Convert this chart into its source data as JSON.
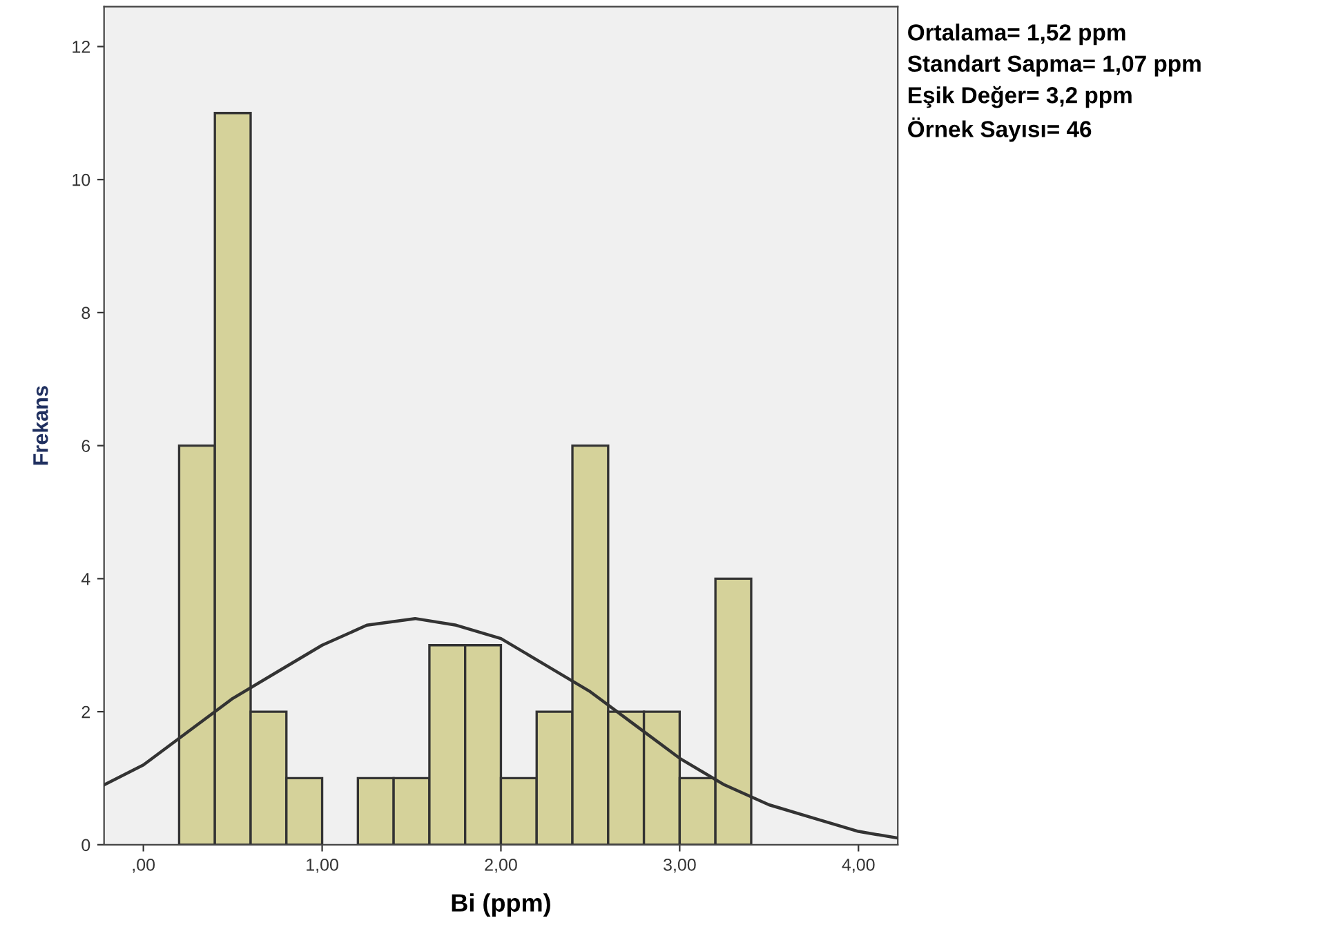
{
  "chart_data": {
    "type": "histogram",
    "xlabel": "Bi (ppm)",
    "ylabel": "Frekans",
    "bins": [
      0.2,
      0.4,
      0.6,
      0.8,
      1.0,
      1.2,
      1.4,
      1.6,
      1.8,
      2.0,
      2.2,
      2.4,
      2.6,
      2.8,
      3.0,
      3.2,
      3.4
    ],
    "values": [
      6,
      11,
      2,
      1,
      0,
      1,
      1,
      3,
      3,
      1,
      2,
      6,
      2,
      2,
      1,
      4
    ],
    "color": "#d5d29a",
    "series": [
      {
        "type": "line",
        "color": "#333333",
        "x": [
          -0.22,
          0.0,
          0.25,
          0.5,
          0.75,
          1.0,
          1.25,
          1.52,
          1.75,
          2.0,
          2.25,
          2.5,
          2.75,
          3.0,
          3.25,
          3.5,
          3.75,
          4.0,
          4.22
        ],
        "values": [
          0.9,
          1.2,
          1.7,
          2.2,
          2.6,
          3.0,
          3.3,
          3.4,
          3.3,
          3.1,
          2.7,
          2.3,
          1.8,
          1.3,
          0.9,
          0.6,
          0.4,
          0.2,
          0.1
        ]
      }
    ],
    "xlim": [
      -0.22,
      4.22
    ],
    "ylim": [
      0,
      12.6
    ],
    "xticks": [
      {
        "value": 0,
        "label": ",00"
      },
      {
        "value": 1,
        "label": "1,00"
      },
      {
        "value": 2,
        "label": "2,00"
      },
      {
        "value": 3,
        "label": "3,00"
      },
      {
        "value": 4,
        "label": "4,00"
      }
    ],
    "yticks": [
      0,
      2,
      4,
      6,
      8,
      10,
      12
    ],
    "grid": false,
    "annotations": [
      "Ortalama= 1,52 ppm",
      "Standart Sapma= 1,07 ppm",
      "Eşik Değer= 3,2 ppm",
      "Örnek Sayısı= 46"
    ]
  }
}
